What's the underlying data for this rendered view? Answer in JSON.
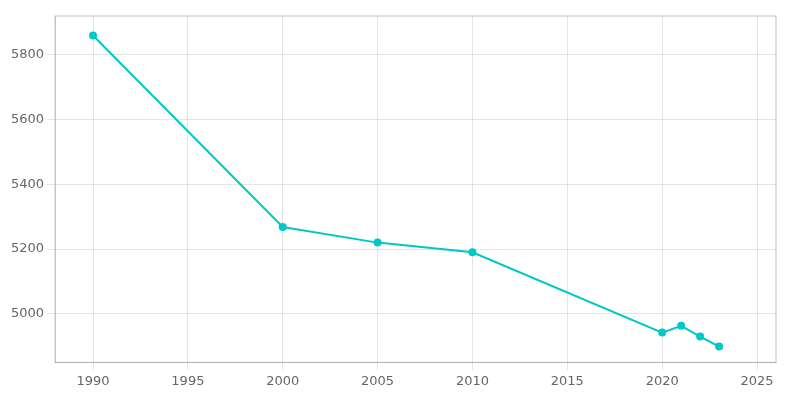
{
  "chart_data": {
    "type": "line",
    "x": [
      1990,
      2000,
      2005,
      2010,
      2020,
      2021,
      2022,
      2023
    ],
    "values": [
      5860,
      5268,
      5220,
      5190,
      4942,
      4963,
      4930,
      4899
    ],
    "color": "#00C8C8",
    "marker": "circle",
    "xlim": [
      1988,
      2026
    ],
    "ylim": [
      4850,
      5920
    ],
    "xticks": [
      1990,
      1995,
      2000,
      2005,
      2010,
      2015,
      2020,
      2025
    ],
    "yticks": [
      5000,
      5200,
      5400,
      5600,
      5800
    ],
    "grid": true
  }
}
